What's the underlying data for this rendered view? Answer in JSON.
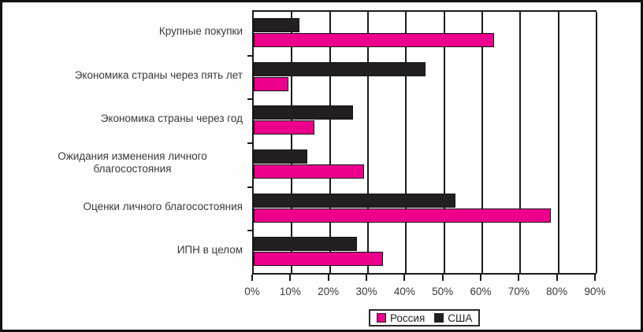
{
  "chart_data": {
    "type": "bar",
    "orientation": "horizontal",
    "title": "",
    "xlabel": "",
    "ylabel": "",
    "xlim": [
      0,
      90
    ],
    "x_tick_step": 10,
    "x_tick_labels": [
      "0%",
      "10%",
      "20%",
      "30%",
      "40%",
      "50%",
      "60%",
      "70%",
      "80%",
      "90%"
    ],
    "grid": true,
    "categories": [
      "Крупные покупки",
      "Экономика страны через пять лет",
      "Экономика страны через год",
      "Ожидания изменения личного благосостояния",
      "Оценки личного благосостояния",
      "ИПН в целом"
    ],
    "series": [
      {
        "name": "США",
        "color": "#231f20",
        "values": [
          12,
          45,
          26,
          14,
          53,
          27
        ]
      },
      {
        "name": "Россия",
        "color": "#ec008c",
        "values": [
          63,
          9,
          16,
          29,
          78,
          34
        ]
      }
    ],
    "bar_order_note": "within each category the США (black) bar is drawn above the Россия (pink) bar",
    "legend": {
      "position": "bottom-center",
      "entries": [
        {
          "label": "Россия",
          "color": "#ec008c"
        },
        {
          "label": "США",
          "color": "#231f20"
        }
      ]
    }
  },
  "colors": {
    "russia_pink": "#ec008c",
    "usa_black": "#231f20",
    "axis": "#1a1a1a",
    "text": "#3a3a3a",
    "background": "#ffffff"
  }
}
